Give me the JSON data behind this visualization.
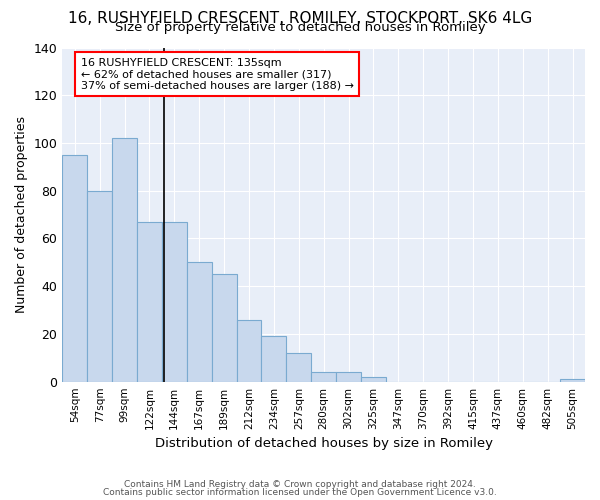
{
  "title1": "16, RUSHYFIELD CRESCENT, ROMILEY, STOCKPORT, SK6 4LG",
  "title2": "Size of property relative to detached houses in Romiley",
  "xlabel": "Distribution of detached houses by size in Romiley",
  "ylabel": "Number of detached properties",
  "categories": [
    "54sqm",
    "77sqm",
    "99sqm",
    "122sqm",
    "144sqm",
    "167sqm",
    "189sqm",
    "212sqm",
    "234sqm",
    "257sqm",
    "280sqm",
    "302sqm",
    "325sqm",
    "347sqm",
    "370sqm",
    "392sqm",
    "415sqm",
    "437sqm",
    "460sqm",
    "482sqm",
    "505sqm"
  ],
  "values": [
    95,
    80,
    102,
    67,
    67,
    50,
    45,
    26,
    19,
    12,
    4,
    4,
    2,
    0,
    0,
    0,
    0,
    0,
    0,
    0,
    1
  ],
  "bar_color": "#c8d8ed",
  "bar_edge_color": "#7aaad0",
  "bar_edge_width": 0.8,
  "ylim": [
    0,
    140
  ],
  "yticks": [
    0,
    20,
    40,
    60,
    80,
    100,
    120,
    140
  ],
  "annotation_box_text": "16 RUSHYFIELD CRESCENT: 135sqm\n← 62% of detached houses are smaller (317)\n37% of semi-detached houses are larger (188) →",
  "bg_color": "#ffffff",
  "plot_bg_color": "#e8eef8",
  "footer1": "Contains HM Land Registry data © Crown copyright and database right 2024.",
  "footer2": "Contains public sector information licensed under the Open Government Licence v3.0.",
  "grid_color": "#ffffff",
  "title1_fontsize": 11,
  "title2_fontsize": 9.5
}
